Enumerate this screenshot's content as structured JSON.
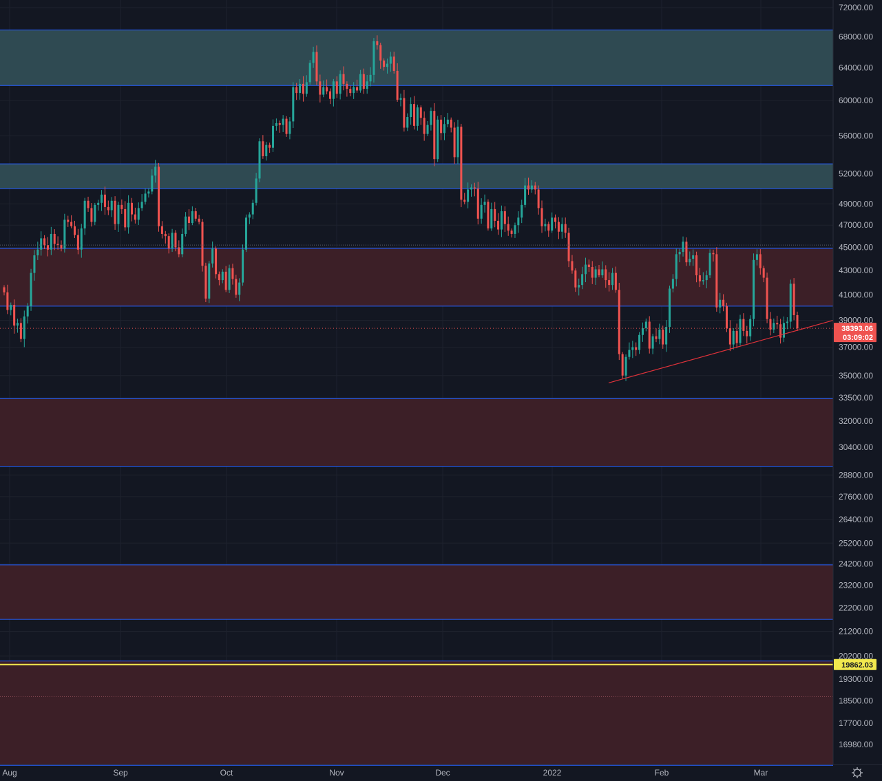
{
  "chart_data": {
    "type": "candlestick",
    "scale": "log",
    "grid": true,
    "y_ticks": [
      72000,
      68000,
      64000,
      60000,
      56000,
      52000,
      49000,
      47000,
      45000,
      43000,
      41000,
      39000,
      37000,
      35000,
      33500,
      32000,
      30400,
      28800,
      27600,
      26400,
      25200,
      24200,
      23200,
      22200,
      21200,
      20200,
      19300,
      18500,
      17700,
      16980
    ],
    "y_tick_labels": [
      "72000.00",
      "68000.00",
      "64000.00",
      "60000.00",
      "56000.00",
      "52000.00",
      "49000.00",
      "47000.00",
      "45000.00",
      "43000.00",
      "41000.00",
      "39000.00",
      "37000.00",
      "35000.00",
      "33500.00",
      "32000.00",
      "30400.00",
      "28800.00",
      "27600.00",
      "26400.00",
      "25200.00",
      "24200.00",
      "23200.00",
      "22200.00",
      "21200.00",
      "20200.00",
      "19300.00",
      "18500.00",
      "17700.00",
      "16980.00"
    ],
    "x_tick_labels": [
      "Aug",
      "Sep",
      "Oct",
      "Nov",
      "Dec",
      "2022",
      "Feb",
      "Mar"
    ],
    "zones": [
      {
        "from": 61800,
        "to": 68900,
        "color": "#2f4a52",
        "kind": "resistance"
      },
      {
        "from": 50500,
        "to": 53000,
        "color": "#2f4a52",
        "kind": "resistance"
      },
      {
        "from": 40100,
        "to": 44900,
        "color": "#3c1f27",
        "kind": "support"
      },
      {
        "from": 29300,
        "to": 33450,
        "color": "#3c1f27",
        "kind": "support"
      },
      {
        "from": 21700,
        "to": 24150,
        "color": "#3c1f27",
        "kind": "support"
      },
      {
        "from": 16300,
        "to": 20000,
        "color": "#3c1f27",
        "kind": "support"
      }
    ],
    "horizontal_line": {
      "value": 19862.03,
      "color": "#f2e94e"
    },
    "trendline": {
      "from": [
        "2022-01-20",
        34500
      ],
      "to": [
        "2022-03-15",
        39000
      ],
      "color": "#e0323a"
    },
    "last_price": {
      "value": 38393.06,
      "label": "38393.06",
      "countdown": "03:09:02",
      "color": "#ef5350"
    },
    "hline_label": "19862.03",
    "colors": {
      "up": "#26a69a",
      "down": "#ef5350",
      "background": "#131722",
      "grid": "#1f2430",
      "zone_line": "#2962ff"
    },
    "candles_approx_closes": [
      41200,
      39800,
      40200,
      38600,
      38800,
      37600,
      39300,
      40100,
      42800,
      44300,
      44800,
      45800,
      45200,
      44800,
      46200,
      45300,
      45200,
      44900,
      47500,
      47300,
      46900,
      46100,
      44800,
      46700,
      49300,
      48600,
      47300,
      48900,
      49100,
      49900,
      48700,
      48400,
      49300,
      47100,
      48900,
      48500,
      46800,
      49100,
      48000,
      47500,
      48600,
      49200,
      50000,
      50200,
      51800,
      52700,
      46900,
      46200,
      46000,
      44900,
      46300,
      45000,
      44400,
      46200,
      47800,
      47200,
      48300,
      47600,
      47300,
      43400,
      40700,
      43600,
      44900,
      42700,
      42200,
      42900,
      41400,
      43200,
      42300,
      41000,
      42000,
      44800,
      47700,
      48000,
      49100,
      51500,
      55400,
      53800,
      55000,
      54700,
      57100,
      57400,
      57200,
      57900,
      56200,
      57600,
      61600,
      60900,
      62000,
      60800,
      62200,
      64600,
      66000,
      62300,
      60700,
      61600,
      61100,
      60200,
      62300,
      60800,
      63200,
      62000,
      61400,
      60900,
      61600,
      61200,
      63200,
      61400,
      62300,
      63100,
      67400,
      66900,
      64900,
      64100,
      64500,
      65400,
      63600,
      60100,
      60300,
      56900,
      58100,
      59600,
      57100,
      59200,
      58000,
      56200,
      57200,
      58800,
      53500,
      57800,
      56300,
      57300,
      57800,
      56900,
      53700,
      57000,
      49400,
      49200,
      50400,
      50600,
      50500,
      47600,
      48900,
      49200,
      46700,
      48500,
      47400,
      46600,
      48300,
      47100,
      46500,
      46200,
      47000,
      47700,
      48900,
      50800,
      50400,
      50800,
      50400,
      48600,
      46900,
      47100,
      46500,
      47700,
      47300,
      46400,
      47100,
      46300,
      43800,
      43000,
      41600,
      41800,
      42700,
      43500,
      43300,
      42400,
      43100,
      42600,
      43100,
      42200,
      41800,
      42800,
      41400,
      36500,
      35000,
      36300,
      36800,
      37000,
      36800,
      37900,
      38400,
      38900,
      36900,
      37800,
      37600,
      38300,
      37200,
      38500,
      41500,
      42300,
      44400,
      44600,
      45500,
      43700,
      44000,
      44300,
      42600,
      42100,
      42200,
      42600,
      44500,
      44400,
      40000,
      40600,
      40100,
      38400,
      37200,
      38200,
      37300,
      39100,
      38200,
      37800,
      39100,
      43900,
      44400,
      43200,
      42400,
      39100,
      38300,
      38800,
      38700,
      37700,
      38800,
      38900,
      41900,
      39400,
      38400
    ]
  }
}
